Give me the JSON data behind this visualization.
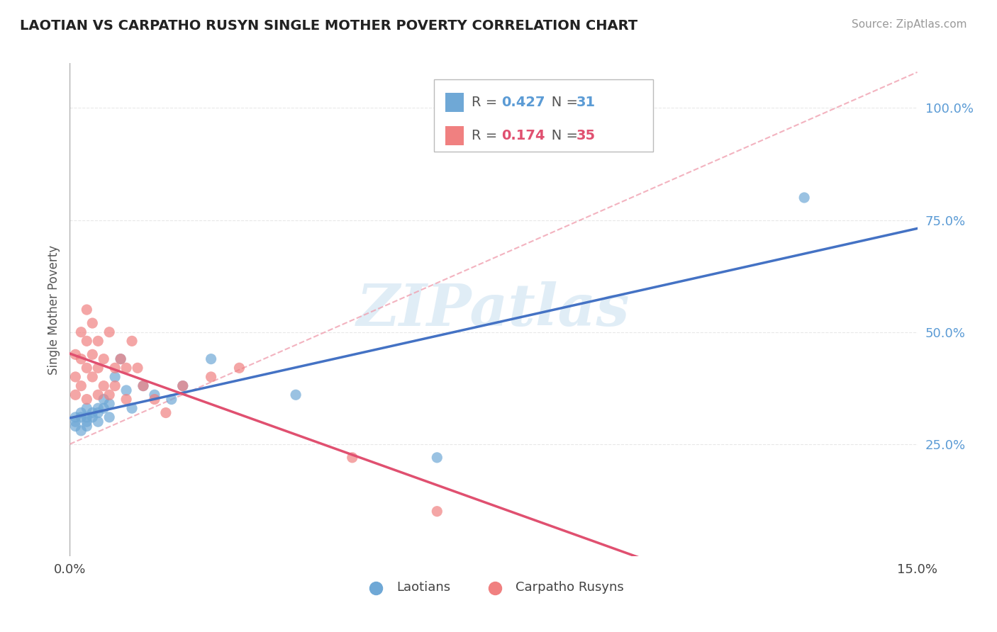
{
  "title": "LAOTIAN VS CARPATHO RUSYN SINGLE MOTHER POVERTY CORRELATION CHART",
  "source": "Source: ZipAtlas.com",
  "ylabel": "Single Mother Poverty",
  "xlim": [
    0.0,
    0.15
  ],
  "ylim": [
    0.0,
    1.1
  ],
  "xtick_positions": [
    0.0,
    0.15
  ],
  "xticklabels": [
    "0.0%",
    "15.0%"
  ],
  "yticks_right": [
    0.25,
    0.5,
    0.75,
    1.0
  ],
  "ytick_right_labels": [
    "25.0%",
    "50.0%",
    "75.0%",
    "100.0%"
  ],
  "laotian_color": "#6fa8d6",
  "carpatho_color": "#f08080",
  "laotian_line_color": "#4472c4",
  "carpatho_line_color": "#e05070",
  "laotian_R": 0.427,
  "laotian_N": 31,
  "carpatho_R": 0.174,
  "carpatho_N": 35,
  "laotian_scatter_x": [
    0.001,
    0.001,
    0.001,
    0.002,
    0.002,
    0.002,
    0.003,
    0.003,
    0.003,
    0.003,
    0.004,
    0.004,
    0.005,
    0.005,
    0.005,
    0.006,
    0.006,
    0.007,
    0.007,
    0.008,
    0.009,
    0.01,
    0.011,
    0.013,
    0.015,
    0.018,
    0.02,
    0.025,
    0.04,
    0.065,
    0.13
  ],
  "laotian_scatter_y": [
    0.31,
    0.29,
    0.3,
    0.32,
    0.28,
    0.31,
    0.33,
    0.3,
    0.29,
    0.31,
    0.32,
    0.31,
    0.3,
    0.33,
    0.32,
    0.35,
    0.33,
    0.31,
    0.34,
    0.4,
    0.44,
    0.37,
    0.33,
    0.38,
    0.36,
    0.35,
    0.38,
    0.44,
    0.36,
    0.22,
    0.8
  ],
  "carpatho_scatter_x": [
    0.001,
    0.001,
    0.001,
    0.002,
    0.002,
    0.002,
    0.003,
    0.003,
    0.003,
    0.003,
    0.004,
    0.004,
    0.004,
    0.005,
    0.005,
    0.005,
    0.006,
    0.006,
    0.007,
    0.007,
    0.008,
    0.008,
    0.009,
    0.01,
    0.01,
    0.011,
    0.012,
    0.013,
    0.015,
    0.017,
    0.02,
    0.025,
    0.03,
    0.05,
    0.065
  ],
  "carpatho_scatter_y": [
    0.36,
    0.4,
    0.45,
    0.38,
    0.44,
    0.5,
    0.35,
    0.42,
    0.48,
    0.55,
    0.4,
    0.45,
    0.52,
    0.36,
    0.42,
    0.48,
    0.38,
    0.44,
    0.5,
    0.36,
    0.42,
    0.38,
    0.44,
    0.35,
    0.42,
    0.48,
    0.42,
    0.38,
    0.35,
    0.32,
    0.38,
    0.4,
    0.42,
    0.22,
    0.1
  ],
  "watermark_text": "ZIPatlas",
  "watermark_color": "#c8dff0",
  "background_color": "#ffffff",
  "grid_color": "#e8e8e8",
  "dashed_line_color": "#f0a0b0"
}
